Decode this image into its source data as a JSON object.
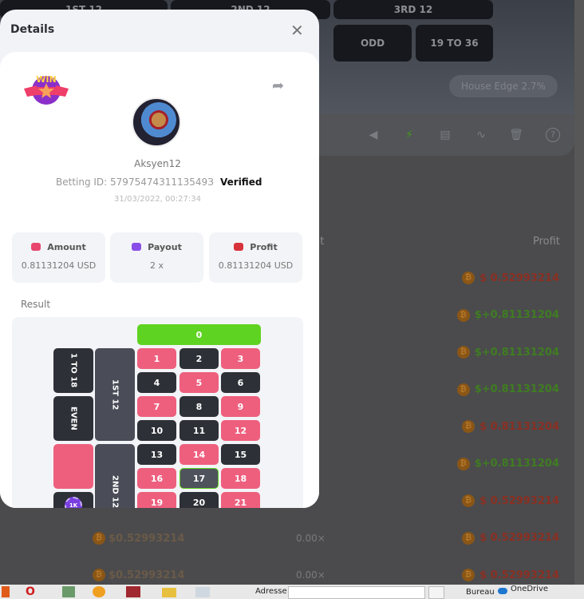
{
  "background": {
    "board_top": [
      "1ST 12",
      "2ND 12",
      "3RD 12"
    ],
    "board_bottom": [
      "ODD",
      "19 TO 36"
    ],
    "house_edge": "House Edge 2.7%",
    "toolbar_icons": [
      "megaphone-icon",
      "lightning-icon",
      "keyboard-icon",
      "chart-icon",
      "trash-icon",
      "help-icon"
    ],
    "accent_active": "#3f9a1f",
    "col_payout_partial": "ut",
    "col_profit": "Profit",
    "profit_rows": [
      {
        "value": "$ 0.52993214",
        "type": "loss"
      },
      {
        "value": "$+0.81131204",
        "type": "win"
      },
      {
        "value": "$+0.81131204",
        "type": "win"
      },
      {
        "value": "$+0.81131204",
        "type": "win"
      },
      {
        "value": "$ 0.81131204",
        "type": "loss"
      },
      {
        "value": "$+0.81131204",
        "type": "win"
      },
      {
        "value": "$ 0.52993214",
        "type": "loss"
      },
      {
        "value": "$ 0.52993214",
        "type": "loss"
      },
      {
        "value": "$ 0.52993214",
        "type": "loss"
      }
    ],
    "bet_rows": [
      {
        "amount": "$0.52993214",
        "mult": "0.00×"
      },
      {
        "amount": "$0.52993214",
        "mult": "0.00×"
      }
    ]
  },
  "modal": {
    "title": "Details",
    "username": "Aksyen12",
    "betting_id": "Betting ID: 5797547431113549З",
    "verified": "Verified",
    "datetime": "31/03/2022, 00:27:34",
    "badge": "WIN",
    "stats": [
      {
        "label": "Amount",
        "value": "0.81131204 USD",
        "color": "#e8456e"
      },
      {
        "label": "Payout",
        "value": "2 x",
        "color": "#8a4ee8"
      },
      {
        "label": "Profit",
        "value": "0.81131204 USD",
        "color": "#d8323a"
      }
    ],
    "result_label": "Result",
    "roulette": {
      "zero": "0",
      "numbers": [
        "1",
        "2",
        "3",
        "4",
        "5",
        "6",
        "7",
        "8",
        "9",
        "10",
        "11",
        "12",
        "13",
        "14",
        "15",
        "16",
        "17",
        "18",
        "19",
        "20",
        "21"
      ],
      "red": [
        "1",
        "3",
        "5",
        "7",
        "9",
        "12",
        "14",
        "16",
        "18",
        "19",
        "21"
      ],
      "winning": "17",
      "side_bets": [
        "1 TO 18",
        "EVEN"
      ],
      "dozens": [
        "1ST 12",
        "2ND 12"
      ],
      "chip": "1K",
      "colors": {
        "red": "#ee5f7e",
        "black": "#2e3037",
        "green": "#5fd321",
        "winning": "#4f535c"
      }
    }
  },
  "taskbar": {
    "address_label": "Adresse",
    "bureau": "Bureau",
    "onedrive": "OneDrive"
  }
}
